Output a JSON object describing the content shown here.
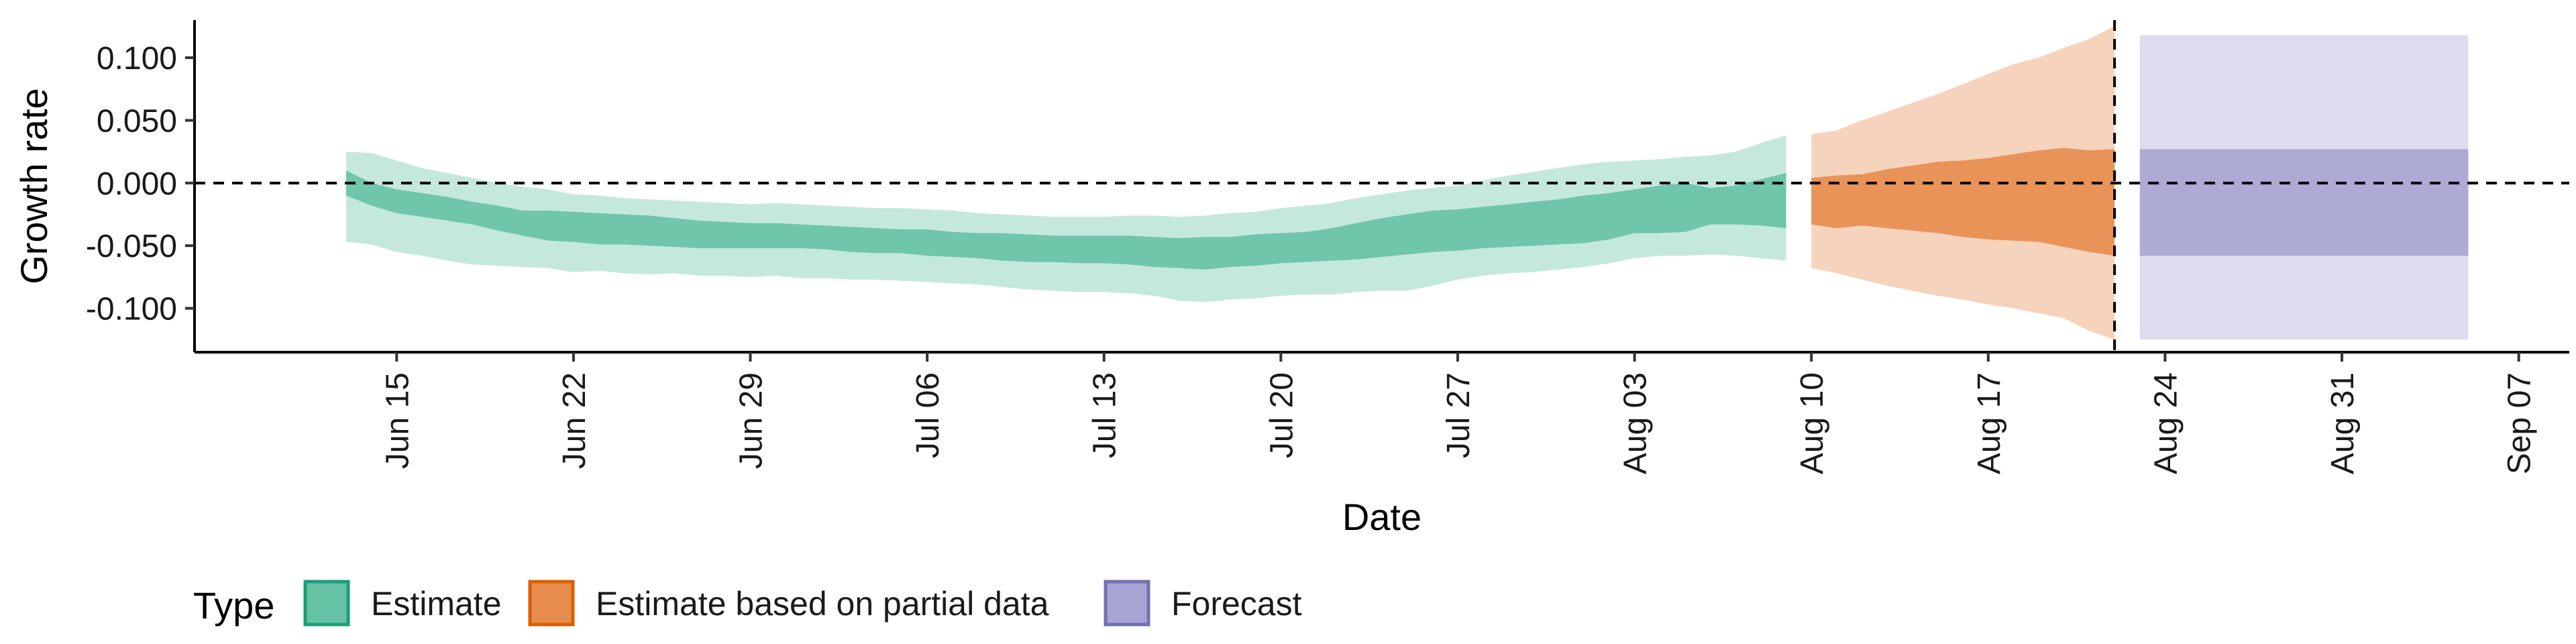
{
  "chart_data": {
    "type": "area",
    "xlabel": "Date",
    "ylabel": "Growth rate",
    "ylim": [
      -0.135,
      0.13
    ],
    "xlim": [
      "2020-06-07",
      "2020-09-09"
    ],
    "y_ticks": [
      {
        "value": 0.1,
        "label": "0.100"
      },
      {
        "value": 0.05,
        "label": "0.050"
      },
      {
        "value": 0.0,
        "label": "0.000"
      },
      {
        "value": -0.05,
        "label": "-0.050"
      },
      {
        "value": -0.1,
        "label": "-0.100"
      }
    ],
    "x_ticks": [
      {
        "date": "2020-06-15",
        "label": "Jun 15"
      },
      {
        "date": "2020-06-22",
        "label": "Jun 22"
      },
      {
        "date": "2020-06-29",
        "label": "Jun 29"
      },
      {
        "date": "2020-07-06",
        "label": "Jul 06"
      },
      {
        "date": "2020-07-13",
        "label": "Jul 13"
      },
      {
        "date": "2020-07-20",
        "label": "Jul 20"
      },
      {
        "date": "2020-07-27",
        "label": "Jul 27"
      },
      {
        "date": "2020-08-03",
        "label": "Aug 03"
      },
      {
        "date": "2020-08-10",
        "label": "Aug 10"
      },
      {
        "date": "2020-08-17",
        "label": "Aug 17"
      },
      {
        "date": "2020-08-24",
        "label": "Aug 24"
      },
      {
        "date": "2020-08-31",
        "label": "Aug 31"
      },
      {
        "date": "2020-09-07",
        "label": "Sep 07"
      }
    ],
    "reference_lines": {
      "horizontal_y": 0.0,
      "vertical_date": "2020-08-22",
      "style": "dashed"
    },
    "grid": false,
    "legend": {
      "title": "Type",
      "placement": "bottom"
    },
    "series": [
      {
        "name": "Estimate",
        "color": "#1b9e77",
        "fill": "#66c2a5",
        "x": [
          "2020-06-13",
          "2020-06-14",
          "2020-06-15",
          "2020-06-16",
          "2020-06-17",
          "2020-06-18",
          "2020-06-19",
          "2020-06-20",
          "2020-06-21",
          "2020-06-22",
          "2020-06-23",
          "2020-06-24",
          "2020-06-25",
          "2020-06-26",
          "2020-06-27",
          "2020-06-28",
          "2020-06-29",
          "2020-06-30",
          "2020-07-01",
          "2020-07-02",
          "2020-07-03",
          "2020-07-04",
          "2020-07-05",
          "2020-07-06",
          "2020-07-07",
          "2020-07-08",
          "2020-07-09",
          "2020-07-10",
          "2020-07-11",
          "2020-07-12",
          "2020-07-13",
          "2020-07-14",
          "2020-07-15",
          "2020-07-16",
          "2020-07-17",
          "2020-07-18",
          "2020-07-19",
          "2020-07-20",
          "2020-07-21",
          "2020-07-22",
          "2020-07-23",
          "2020-07-24",
          "2020-07-25",
          "2020-07-26",
          "2020-07-27",
          "2020-07-28",
          "2020-07-29",
          "2020-07-30",
          "2020-07-31",
          "2020-08-01",
          "2020-08-02",
          "2020-08-03",
          "2020-08-04",
          "2020-08-05",
          "2020-08-06",
          "2020-08-07",
          "2020-08-08",
          "2020-08-09"
        ],
        "lower90": [
          -0.047,
          -0.049,
          -0.055,
          -0.058,
          -0.062,
          -0.065,
          -0.066,
          -0.067,
          -0.068,
          -0.071,
          -0.07,
          -0.072,
          -0.073,
          -0.072,
          -0.074,
          -0.074,
          -0.075,
          -0.074,
          -0.076,
          -0.076,
          -0.077,
          -0.077,
          -0.078,
          -0.079,
          -0.08,
          -0.081,
          -0.083,
          -0.085,
          -0.086,
          -0.087,
          -0.087,
          -0.088,
          -0.09,
          -0.094,
          -0.095,
          -0.093,
          -0.092,
          -0.09,
          -0.089,
          -0.089,
          -0.087,
          -0.086,
          -0.086,
          -0.082,
          -0.077,
          -0.074,
          -0.072,
          -0.071,
          -0.069,
          -0.067,
          -0.064,
          -0.06,
          -0.058,
          -0.058,
          -0.057,
          -0.058,
          -0.06,
          -0.062
        ],
        "upper90": [
          0.025,
          0.024,
          0.018,
          0.012,
          0.008,
          0.004,
          0.0,
          -0.003,
          -0.005,
          -0.009,
          -0.01,
          -0.012,
          -0.013,
          -0.014,
          -0.015,
          -0.016,
          -0.017,
          -0.016,
          -0.017,
          -0.018,
          -0.019,
          -0.02,
          -0.02,
          -0.021,
          -0.022,
          -0.024,
          -0.025,
          -0.026,
          -0.027,
          -0.027,
          -0.027,
          -0.026,
          -0.026,
          -0.027,
          -0.026,
          -0.024,
          -0.023,
          -0.02,
          -0.018,
          -0.016,
          -0.012,
          -0.009,
          -0.006,
          -0.004,
          -0.002,
          0.002,
          0.006,
          0.009,
          0.012,
          0.015,
          0.017,
          0.018,
          0.019,
          0.021,
          0.022,
          0.025,
          0.032,
          0.038
        ],
        "lower50": [
          -0.01,
          -0.018,
          -0.024,
          -0.027,
          -0.03,
          -0.033,
          -0.038,
          -0.042,
          -0.046,
          -0.047,
          -0.049,
          -0.049,
          -0.05,
          -0.051,
          -0.052,
          -0.052,
          -0.052,
          -0.052,
          -0.052,
          -0.053,
          -0.055,
          -0.056,
          -0.056,
          -0.058,
          -0.059,
          -0.06,
          -0.062,
          -0.063,
          -0.063,
          -0.064,
          -0.064,
          -0.065,
          -0.067,
          -0.068,
          -0.069,
          -0.067,
          -0.066,
          -0.064,
          -0.063,
          -0.062,
          -0.061,
          -0.059,
          -0.057,
          -0.055,
          -0.054,
          -0.052,
          -0.051,
          -0.05,
          -0.049,
          -0.048,
          -0.045,
          -0.04,
          -0.04,
          -0.039,
          -0.033,
          -0.033,
          -0.034,
          -0.036
        ],
        "upper50": [
          0.01,
          0.0,
          -0.005,
          -0.008,
          -0.011,
          -0.015,
          -0.018,
          -0.022,
          -0.022,
          -0.023,
          -0.024,
          -0.025,
          -0.026,
          -0.028,
          -0.03,
          -0.031,
          -0.032,
          -0.032,
          -0.033,
          -0.034,
          -0.035,
          -0.036,
          -0.037,
          -0.037,
          -0.039,
          -0.04,
          -0.04,
          -0.041,
          -0.042,
          -0.042,
          -0.042,
          -0.042,
          -0.043,
          -0.044,
          -0.043,
          -0.043,
          -0.041,
          -0.04,
          -0.039,
          -0.036,
          -0.032,
          -0.028,
          -0.025,
          -0.022,
          -0.021,
          -0.019,
          -0.017,
          -0.015,
          -0.013,
          -0.01,
          -0.008,
          -0.005,
          -0.002,
          0.0,
          -0.004,
          -0.002,
          0.003,
          0.008
        ]
      },
      {
        "name": "Estimate based on partial data",
        "color": "#d95f02",
        "fill": "#e88c4e",
        "x": [
          "2020-08-10",
          "2020-08-11",
          "2020-08-12",
          "2020-08-13",
          "2020-08-14",
          "2020-08-15",
          "2020-08-16",
          "2020-08-17",
          "2020-08-18",
          "2020-08-19",
          "2020-08-20",
          "2020-08-21",
          "2020-08-22"
        ],
        "lower90": [
          -0.068,
          -0.072,
          -0.077,
          -0.082,
          -0.086,
          -0.09,
          -0.093,
          -0.097,
          -0.1,
          -0.104,
          -0.108,
          -0.118,
          -0.125
        ],
        "upper90": [
          0.039,
          0.042,
          0.05,
          0.057,
          0.064,
          0.071,
          0.079,
          0.087,
          0.095,
          0.1,
          0.108,
          0.115,
          0.125
        ],
        "lower50": [
          -0.033,
          -0.036,
          -0.034,
          -0.036,
          -0.038,
          -0.04,
          -0.043,
          -0.045,
          -0.046,
          -0.047,
          -0.051,
          -0.055,
          -0.058
        ],
        "upper50": [
          0.004,
          0.006,
          0.007,
          0.011,
          0.014,
          0.017,
          0.018,
          0.02,
          0.023,
          0.026,
          0.028,
          0.026,
          0.027
        ]
      },
      {
        "name": "Forecast",
        "color": "#7570b3",
        "fill": "#a8a4d3",
        "x": [
          "2020-08-23",
          "2020-09-05"
        ],
        "lower90": [
          -0.125,
          -0.125
        ],
        "upper90": [
          0.118,
          0.118
        ],
        "lower50": [
          -0.058,
          -0.058
        ],
        "upper50": [
          0.027,
          0.027
        ]
      }
    ]
  }
}
